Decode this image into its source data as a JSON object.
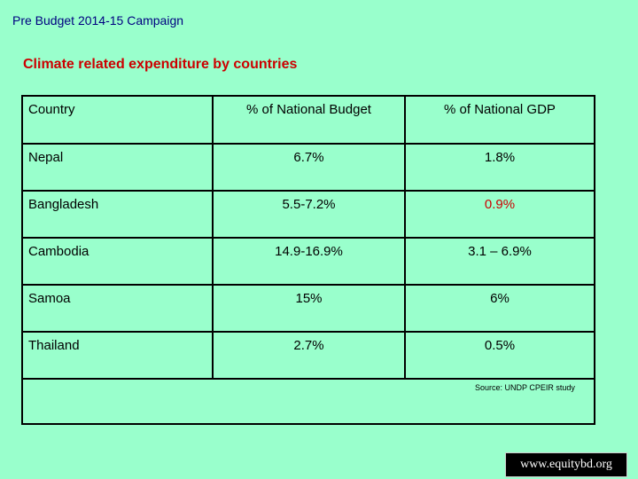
{
  "header": {
    "title": "Pre Budget 2014-15 Campaign"
  },
  "slide": {
    "title": "Climate related expenditure by countries"
  },
  "table": {
    "columns": [
      "Country",
      "% of National Budget",
      "% of National GDP"
    ],
    "rows": [
      {
        "country": "Nepal",
        "budget": "6.7%",
        "gdp": "1.8%"
      },
      {
        "country": "Bangladesh",
        "budget": "5.5-7.2%",
        "gdp": "0.9%"
      },
      {
        "country": "Cambodia",
        "budget": "14.9-16.9%",
        "gdp": "3.1 – 6.9%"
      },
      {
        "country": "Samoa",
        "budget": "15%",
        "gdp": "6%"
      },
      {
        "country": "Thailand",
        "budget": "2.7%",
        "gdp": "0.5%"
      }
    ],
    "source": "Source: UNDP CPEIR study"
  },
  "footer": {
    "logo_text": "www.equitybd.org"
  },
  "colors": {
    "background": "#99ffcc",
    "highlight": "#cc0000",
    "header_text": "#000080"
  }
}
